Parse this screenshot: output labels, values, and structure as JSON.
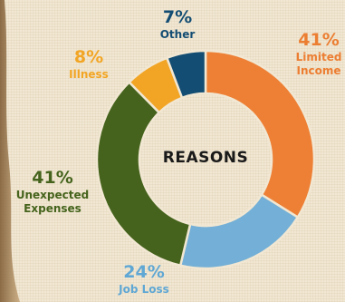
{
  "chart_data": {
    "type": "pie",
    "title": "",
    "center_label": "REASONS",
    "categories": [
      "Limited Income",
      "Job Loss",
      "Unexpected Expenses",
      "Illness",
      "Other"
    ],
    "values": [
      41,
      24,
      41,
      8,
      7
    ],
    "percent_labels": [
      "41%",
      "24%",
      "41%",
      "8%",
      "7%"
    ],
    "label_lines": [
      [
        "Limited",
        "Income"
      ],
      [
        "Job Loss"
      ],
      [
        "Unexpected",
        "Expenses"
      ],
      [
        "Illness"
      ],
      [
        "Other"
      ]
    ],
    "colors": [
      "#ee8035",
      "#73afd6",
      "#45631c",
      "#f2a524",
      "#134d73"
    ],
    "label_colors": [
      "#ec7e32",
      "#5fa7d4",
      "#45631c",
      "#f2a524",
      "#134d73"
    ],
    "legend": "none"
  }
}
